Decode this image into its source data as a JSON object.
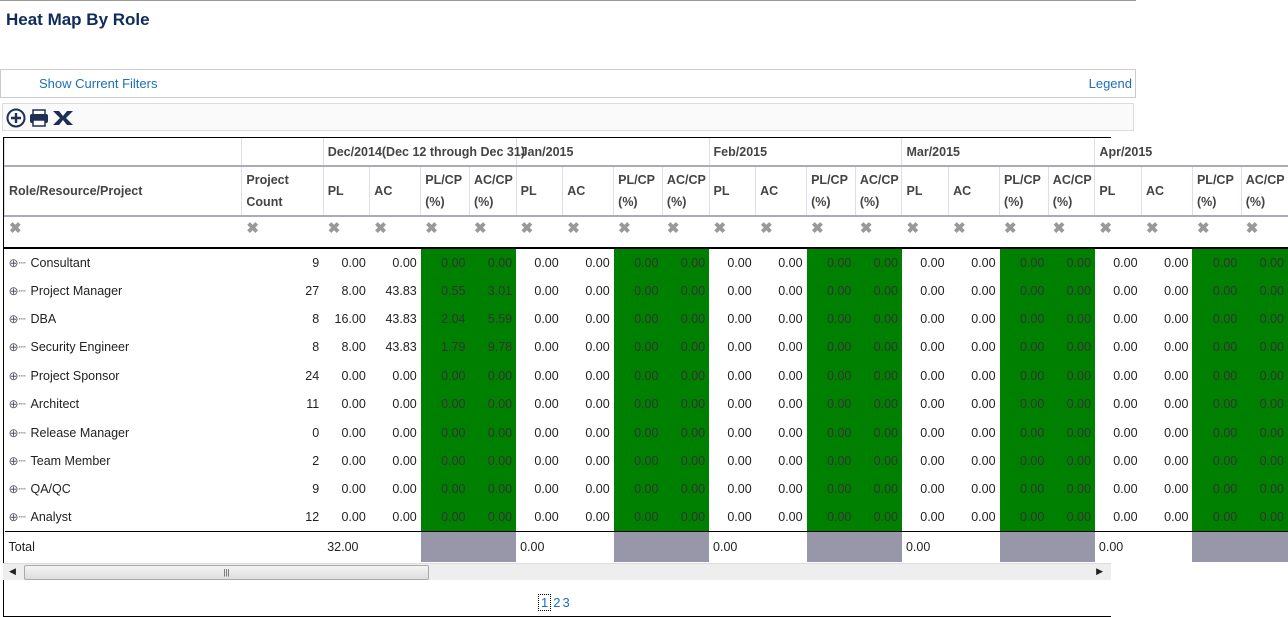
{
  "title": "Heat Map By Role",
  "filters": {
    "show": "Show Current Filters",
    "legend": "Legend"
  },
  "toolbar": {
    "expand": "expand-icon",
    "print": "print-icon",
    "excel": "excel-export-icon"
  },
  "colors": {
    "green": "#008000",
    "gray": "#9897aa"
  },
  "columns": {
    "role": "Role/Resource/Project",
    "count": "Project Count",
    "pl": "PL",
    "ac": "AC",
    "plcp": "PL/CP (%)",
    "accp": "AC/CP (%)"
  },
  "months": [
    "Dec/2014(Dec 12 through Dec 31)",
    "Jan/2015",
    "Feb/2015",
    "Mar/2015",
    "Apr/2015"
  ],
  "filter_glyph": "✖",
  "rows": [
    {
      "role": "Consultant",
      "count": "9",
      "dec": [
        "0.00",
        "0.00",
        "0.00",
        "0.00"
      ]
    },
    {
      "role": "Project Manager",
      "count": "27",
      "dec": [
        "8.00",
        "43.83",
        "0.55",
        "3.01"
      ]
    },
    {
      "role": "DBA",
      "count": "8",
      "dec": [
        "16.00",
        "43.83",
        "2.04",
        "5.59"
      ]
    },
    {
      "role": "Security Engineer",
      "count": "8",
      "dec": [
        "8.00",
        "43.83",
        "1.79",
        "9.78"
      ]
    },
    {
      "role": "Project Sponsor",
      "count": "24",
      "dec": [
        "0.00",
        "0.00",
        "0.00",
        "0.00"
      ]
    },
    {
      "role": "Architect",
      "count": "11",
      "dec": [
        "0.00",
        "0.00",
        "0.00",
        "0.00"
      ]
    },
    {
      "role": "Release Manager",
      "count": "0",
      "dec": [
        "0.00",
        "0.00",
        "0.00",
        "0.00"
      ]
    },
    {
      "role": "Team Member",
      "count": "2",
      "dec": [
        "0.00",
        "0.00",
        "0.00",
        "0.00"
      ]
    },
    {
      "role": "QA/QC",
      "count": "9",
      "dec": [
        "0.00",
        "0.00",
        "0.00",
        "0.00"
      ]
    },
    {
      "role": "Analyst",
      "count": "12",
      "dec": [
        "0.00",
        "0.00",
        "0.00",
        "0.00"
      ]
    }
  ],
  "other_month_value": "0.00",
  "total": {
    "label": "Total",
    "pl": [
      "32.00",
      "0.00",
      "0.00",
      "0.00",
      "0.00"
    ]
  },
  "pager": [
    "1",
    "2",
    "3"
  ]
}
